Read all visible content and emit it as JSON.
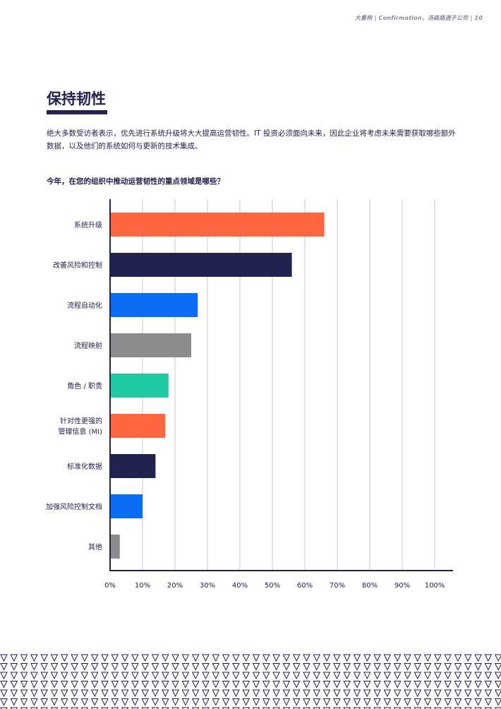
{
  "header": {
    "meta": "大重构 | Confirmation，汤森路透子公司 | 10"
  },
  "section": {
    "title": "保持韧性",
    "intro": "绝大多数受访者表示，优先进行系统升级将大大提高运营韧性。IT 投资必须面向未来，因此企业将考虑未来需要获取哪些额外数据，以及他们的系统如何与更新的技术集成。"
  },
  "chart_data": {
    "type": "bar",
    "orientation": "horizontal",
    "title": "今年，在您的组织中推动运营韧性的重点领域是哪些？",
    "categories": [
      [
        "系统升级"
      ],
      [
        "改善风险和控制"
      ],
      [
        "流程自动化"
      ],
      [
        "流程映射"
      ],
      [
        "角色 / 职责"
      ],
      [
        "针对性更强的",
        "管理信息 (MI)"
      ],
      [
        "标准化数据"
      ],
      [
        "加强风险控制文档"
      ],
      [
        "其他"
      ]
    ],
    "values": [
      66,
      56,
      27,
      25,
      18,
      17,
      14,
      10,
      3
    ],
    "colors": [
      "#ff6640",
      "#22224f",
      "#0a6cf2",
      "#8c8c8c",
      "#1ec9a4",
      "#ff6640",
      "#22224f",
      "#0a6cf2",
      "#8c8c8c"
    ],
    "xlim": [
      0,
      100
    ],
    "xticks": [
      "0%",
      "10%",
      "20%",
      "30%",
      "40%",
      "50%",
      "60%",
      "70%",
      "80%",
      "90%",
      "100%"
    ],
    "grid": true,
    "axis_color": "#22224f",
    "grid_color": "#cfd2dc"
  },
  "decoration": {
    "pattern": "triangle-outline-icon",
    "pattern_color": "#22224f"
  }
}
